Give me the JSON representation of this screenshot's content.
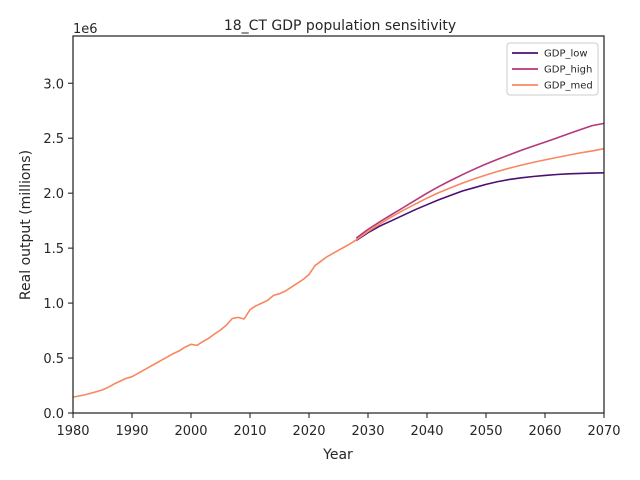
{
  "chart_data": {
    "type": "line",
    "title": "18_CT GDP population sensitivity",
    "xlabel": "Year",
    "ylabel": "Real output (millions)",
    "y_offset_label": "1e6",
    "xlim": [
      1980,
      2070
    ],
    "ylim": [
      0,
      3430000
    ],
    "x_ticks": [
      "1980",
      "1990",
      "2000",
      "2010",
      "2020",
      "2030",
      "2040",
      "2050",
      "2060",
      "2070"
    ],
    "y_ticks": [
      "0.0",
      "0.5",
      "1.0",
      "1.5",
      "2.0",
      "2.5",
      "3.0"
    ],
    "grid": false,
    "legend_position": "top-right",
    "series": [
      {
        "name": "GDP_low",
        "color": "#4a1070",
        "x": [
          2028,
          2030,
          2032,
          2034,
          2036,
          2038,
          2040,
          2042,
          2044,
          2046,
          2048,
          2050,
          2052,
          2054,
          2056,
          2058,
          2060,
          2062,
          2064,
          2066,
          2068,
          2070
        ],
        "y": [
          1570000,
          1640000,
          1700000,
          1750000,
          1800000,
          1850000,
          1895000,
          1940000,
          1980000,
          2020000,
          2050000,
          2080000,
          2105000,
          2125000,
          2140000,
          2152000,
          2162000,
          2170000,
          2176000,
          2180000,
          2183000,
          2185000
        ]
      },
      {
        "name": "GDP_high",
        "color": "#b5367a",
        "x": [
          2028,
          2030,
          2032,
          2034,
          2036,
          2038,
          2040,
          2042,
          2044,
          2046,
          2048,
          2050,
          2052,
          2054,
          2056,
          2058,
          2060,
          2062,
          2064,
          2066,
          2068,
          2070
        ],
        "y": [
          1590000,
          1670000,
          1740000,
          1805000,
          1870000,
          1935000,
          2000000,
          2060000,
          2115000,
          2168000,
          2218000,
          2265000,
          2308000,
          2350000,
          2390000,
          2428000,
          2465000,
          2502000,
          2540000,
          2578000,
          2615000,
          2635000
        ]
      },
      {
        "name": "GDP_med",
        "color": "#f8875f",
        "x": [
          1980,
          1982,
          1984,
          1985,
          1986,
          1987,
          1988,
          1989,
          1990,
          1991,
          1992,
          1993,
          1994,
          1995,
          1996,
          1997,
          1998,
          1999,
          2000,
          2001,
          2002,
          2003,
          2004,
          2005,
          2006,
          2007,
          2008,
          2009,
          2010,
          2011,
          2012,
          2013,
          2014,
          2015,
          2016,
          2017,
          2018,
          2019,
          2020,
          2021,
          2022,
          2023,
          2024,
          2025,
          2026,
          2027,
          2028,
          2030,
          2032,
          2034,
          2036,
          2038,
          2040,
          2042,
          2044,
          2046,
          2048,
          2050,
          2052,
          2054,
          2056,
          2058,
          2060,
          2062,
          2064,
          2066,
          2068,
          2070
        ],
        "y": [
          145000,
          165000,
          195000,
          210000,
          235000,
          265000,
          290000,
          315000,
          330000,
          360000,
          390000,
          420000,
          450000,
          480000,
          510000,
          540000,
          565000,
          600000,
          625000,
          615000,
          650000,
          680000,
          720000,
          755000,
          800000,
          860000,
          870000,
          855000,
          940000,
          975000,
          1000000,
          1025000,
          1070000,
          1085000,
          1110000,
          1145000,
          1180000,
          1215000,
          1260000,
          1340000,
          1380000,
          1420000,
          1450000,
          1480000,
          1510000,
          1540000,
          1575000,
          1650000,
          1720000,
          1785000,
          1845000,
          1900000,
          1955000,
          2005000,
          2050000,
          2092000,
          2130000,
          2165000,
          2198000,
          2228000,
          2255000,
          2280000,
          2303000,
          2325000,
          2346000,
          2366000,
          2385000,
          2405000
        ]
      }
    ]
  }
}
